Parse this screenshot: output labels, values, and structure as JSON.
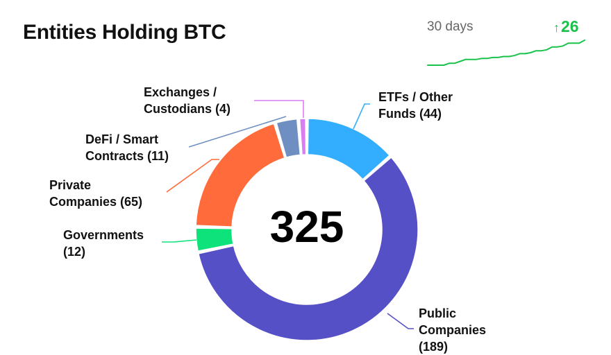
{
  "header": {
    "title": "Entities Holding BTC",
    "period_label": "30 days",
    "change_arrow": "↑",
    "change_value": "26"
  },
  "sparkline": {
    "color": "#19c24a",
    "values": [
      299,
      299,
      299,
      299,
      301,
      301,
      303,
      305,
      305,
      305,
      306,
      306,
      307,
      307,
      308,
      308,
      309,
      311,
      311,
      312,
      314,
      314,
      315,
      318,
      318,
      319,
      322,
      322,
      322,
      325
    ]
  },
  "chart_data": {
    "type": "pie",
    "total_label": "325",
    "slices": [
      {
        "label": "ETFs / Other\nFunds (44)",
        "value": 44,
        "color": "#33aeff"
      },
      {
        "label": "Public\nCompanies\n(189)",
        "value": 189,
        "color": "#5550c5"
      },
      {
        "label": "Governments\n(12)",
        "value": 12,
        "color": "#0ee27a"
      },
      {
        "label": "Private\nCompanies (65)",
        "value": 65,
        "color": "#ff6b3a"
      },
      {
        "label": "DeFi / Smart\nContracts (11)",
        "value": 11,
        "color": "#6f8fc2"
      },
      {
        "label": "Exchanges /\nCustodians (4)",
        "value": 4,
        "color": "#d97ef0"
      }
    ]
  }
}
